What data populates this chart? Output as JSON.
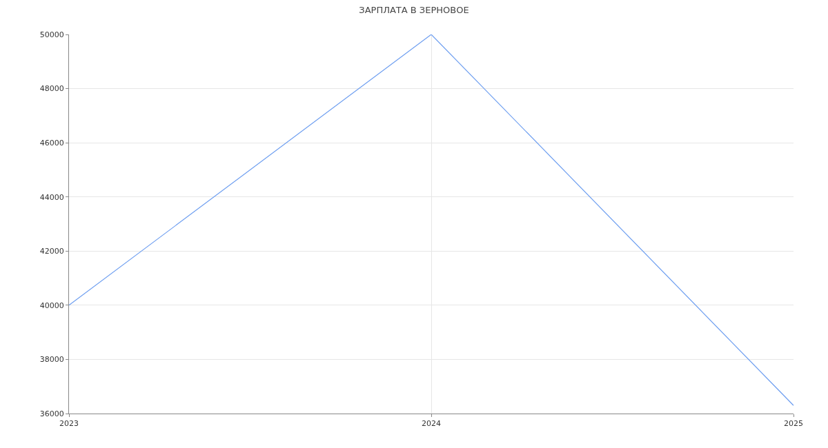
{
  "chart_data": {
    "type": "line",
    "title": "ЗАРПЛАТА В ЗЕРНОВОЕ",
    "x": [
      2023,
      2024,
      2025
    ],
    "series": [
      {
        "color": "#6d9ef0",
        "values": [
          40000,
          50000,
          36300
        ]
      }
    ],
    "xlim": [
      2023,
      2025
    ],
    "xticks": [
      2023,
      2024,
      2025
    ],
    "ylim": [
      36000,
      50000
    ],
    "yticks": [
      36000,
      38000,
      40000,
      42000,
      44000,
      46000,
      48000,
      50000
    ],
    "grid": true,
    "marker": "none",
    "line_style": "solid"
  }
}
